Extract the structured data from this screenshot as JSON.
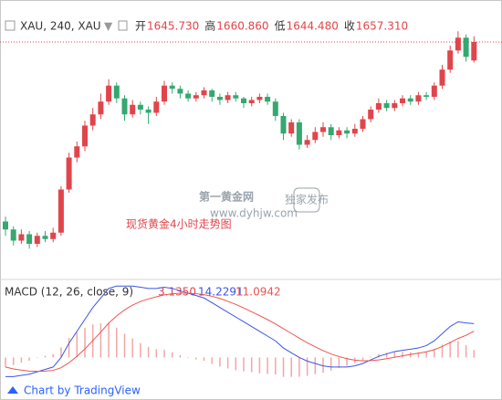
{
  "chart_data": {
    "type": "candlestick",
    "symbol": "XAU, 240, XAU",
    "ohlc_legend": [
      {
        "name": "开",
        "value": "1645.730"
      },
      {
        "name": "高",
        "value": "1660.860"
      },
      {
        "name": "低",
        "value": "1644.480"
      },
      {
        "name": "收",
        "value": "1657.310"
      }
    ],
    "annotation": "现货黄金4小时走势图",
    "watermark": {
      "name": "第一黄金网",
      "url": "www.dyhjw.com",
      "badge": "独家发布"
    },
    "up_color": "#e0454b",
    "down_color": "#35a870",
    "ylim": [
      1515,
      1675
    ],
    "open": [
      1545,
      1540,
      1533,
      1537,
      1531,
      1536,
      1534,
      1538,
      1565,
      1585,
      1592,
      1605,
      1612,
      1620,
      1630,
      1622,
      1612,
      1618,
      1615,
      1613,
      1620,
      1630,
      1628,
      1625,
      1622,
      1624,
      1627,
      1623,
      1621,
      1624,
      1622,
      1619,
      1621,
      1623,
      1620,
      1611,
      1600,
      1607,
      1593,
      1596,
      1601,
      1604,
      1599,
      1602,
      1600,
      1603,
      1609,
      1615,
      1619,
      1616,
      1619,
      1622,
      1620,
      1624,
      1623,
      1630,
      1640,
      1652,
      1660,
      1645.73
    ],
    "high": [
      1548,
      1542,
      1540,
      1539,
      1538,
      1539,
      1541,
      1567,
      1588,
      1595,
      1608,
      1616,
      1625,
      1634,
      1632,
      1624,
      1621,
      1620,
      1617,
      1623,
      1633,
      1632,
      1630,
      1627,
      1626,
      1629,
      1628,
      1625,
      1626,
      1626,
      1623,
      1623,
      1625,
      1625,
      1622,
      1613,
      1609,
      1609,
      1599,
      1604,
      1607,
      1606,
      1604,
      1604,
      1606,
      1611,
      1617,
      1622,
      1621,
      1621,
      1624,
      1624,
      1626,
      1626,
      1632,
      1643,
      1655,
      1664,
      1662,
      1660.86
    ],
    "low": [
      1536,
      1530,
      1531,
      1528,
      1529,
      1532,
      1532,
      1536,
      1563,
      1582,
      1589,
      1602,
      1609,
      1618,
      1619,
      1608,
      1610,
      1612,
      1606,
      1611,
      1618,
      1625,
      1622,
      1620,
      1620,
      1622,
      1620,
      1618,
      1619,
      1620,
      1616,
      1617,
      1619,
      1618,
      1608,
      1596,
      1598,
      1590,
      1591,
      1594,
      1598,
      1596,
      1597,
      1597,
      1598,
      1601,
      1607,
      1613,
      1614,
      1614,
      1617,
      1618,
      1618,
      1621,
      1621,
      1628,
      1638,
      1650,
      1645,
      1644.48
    ],
    "close": [
      1540,
      1533,
      1537,
      1531,
      1536,
      1534,
      1538,
      1565,
      1585,
      1592,
      1605,
      1612,
      1620,
      1630,
      1622,
      1612,
      1618,
      1615,
      1613,
      1620,
      1630,
      1628,
      1625,
      1622,
      1624,
      1627,
      1623,
      1621,
      1624,
      1622,
      1619,
      1621,
      1623,
      1620,
      1611,
      1600,
      1607,
      1593,
      1596,
      1601,
      1604,
      1599,
      1602,
      1600,
      1603,
      1609,
      1615,
      1619,
      1616,
      1619,
      1622,
      1620,
      1624,
      1623,
      1630,
      1640,
      1652,
      1660,
      1648,
      1657.31
    ],
    "macd": {
      "title": "MACD (12, 26, close, 9)",
      "value_labels": [
        "3.1350",
        "14.2291",
        "11.0942"
      ],
      "ylim": [
        -14,
        32
      ],
      "histogram": {
        "color": "#f2a6a6",
        "values": [
          -4,
          -3.2,
          -2.2,
          -1.3,
          -0.2,
          0.7,
          1.4,
          4.3,
          8.2,
          10.5,
          12.4,
          13.9,
          14.3,
          14.6,
          12.5,
          10,
          8,
          6,
          4.4,
          3.5,
          3.2,
          2.2,
          1,
          0,
          -0.8,
          -1.4,
          -2.7,
          -3.8,
          -4.6,
          -5.3,
          -5.8,
          -6.2,
          -6.6,
          -6.9,
          -7.1,
          -8.1,
          -8.1,
          -8.1,
          -7.7,
          -7,
          -6.4,
          -5.5,
          -4.4,
          -3.5,
          -2.4,
          -1.1,
          0.3,
          1.5,
          2,
          2.4,
          2.3,
          2.2,
          2.2,
          2.6,
          3.7,
          5.4,
          6.7,
          7,
          5.2,
          3.135
        ]
      },
      "macd_line": {
        "color": "#3a55e6",
        "values": [
          -8,
          -8,
          -7.5,
          -7,
          -6,
          -5,
          -4,
          0,
          6,
          11,
          16,
          21,
          25,
          29,
          30,
          30,
          30,
          29.5,
          29,
          29,
          29.5,
          29,
          28,
          27,
          26,
          25,
          23,
          21,
          19,
          17,
          15,
          13,
          11,
          9,
          7,
          4,
          2,
          0,
          -1.5,
          -2.5,
          -3.5,
          -4,
          -4,
          -4,
          -3.5,
          -2.5,
          -1,
          0.5,
          1.5,
          2.5,
          3,
          3.5,
          4,
          5,
          7,
          10,
          13,
          15,
          14.5,
          14.2291
        ]
      },
      "signal_line": {
        "color": "#ef5350",
        "values": [
          -4,
          -4.8,
          -5.3,
          -5.7,
          -5.8,
          -5.7,
          -5.4,
          -4.3,
          -2.2,
          0.5,
          3.6,
          7.1,
          10.7,
          14.4,
          17.5,
          20,
          22,
          23.5,
          24.6,
          25.5,
          26.3,
          26.8,
          27,
          27,
          26.8,
          26.4,
          25.7,
          24.8,
          23.6,
          22.3,
          20.8,
          19.2,
          17.6,
          15.9,
          14.1,
          12.1,
          10.1,
          8.1,
          6.2,
          4.5,
          2.9,
          1.5,
          0.4,
          -0.5,
          -1.1,
          -1.4,
          -1.3,
          -1,
          -0.5,
          0.1,
          0.7,
          1.3,
          1.8,
          2.4,
          3.3,
          4.6,
          6.3,
          8,
          9.3,
          11.0942
        ]
      }
    },
    "footer": "Chart by TradingView"
  }
}
